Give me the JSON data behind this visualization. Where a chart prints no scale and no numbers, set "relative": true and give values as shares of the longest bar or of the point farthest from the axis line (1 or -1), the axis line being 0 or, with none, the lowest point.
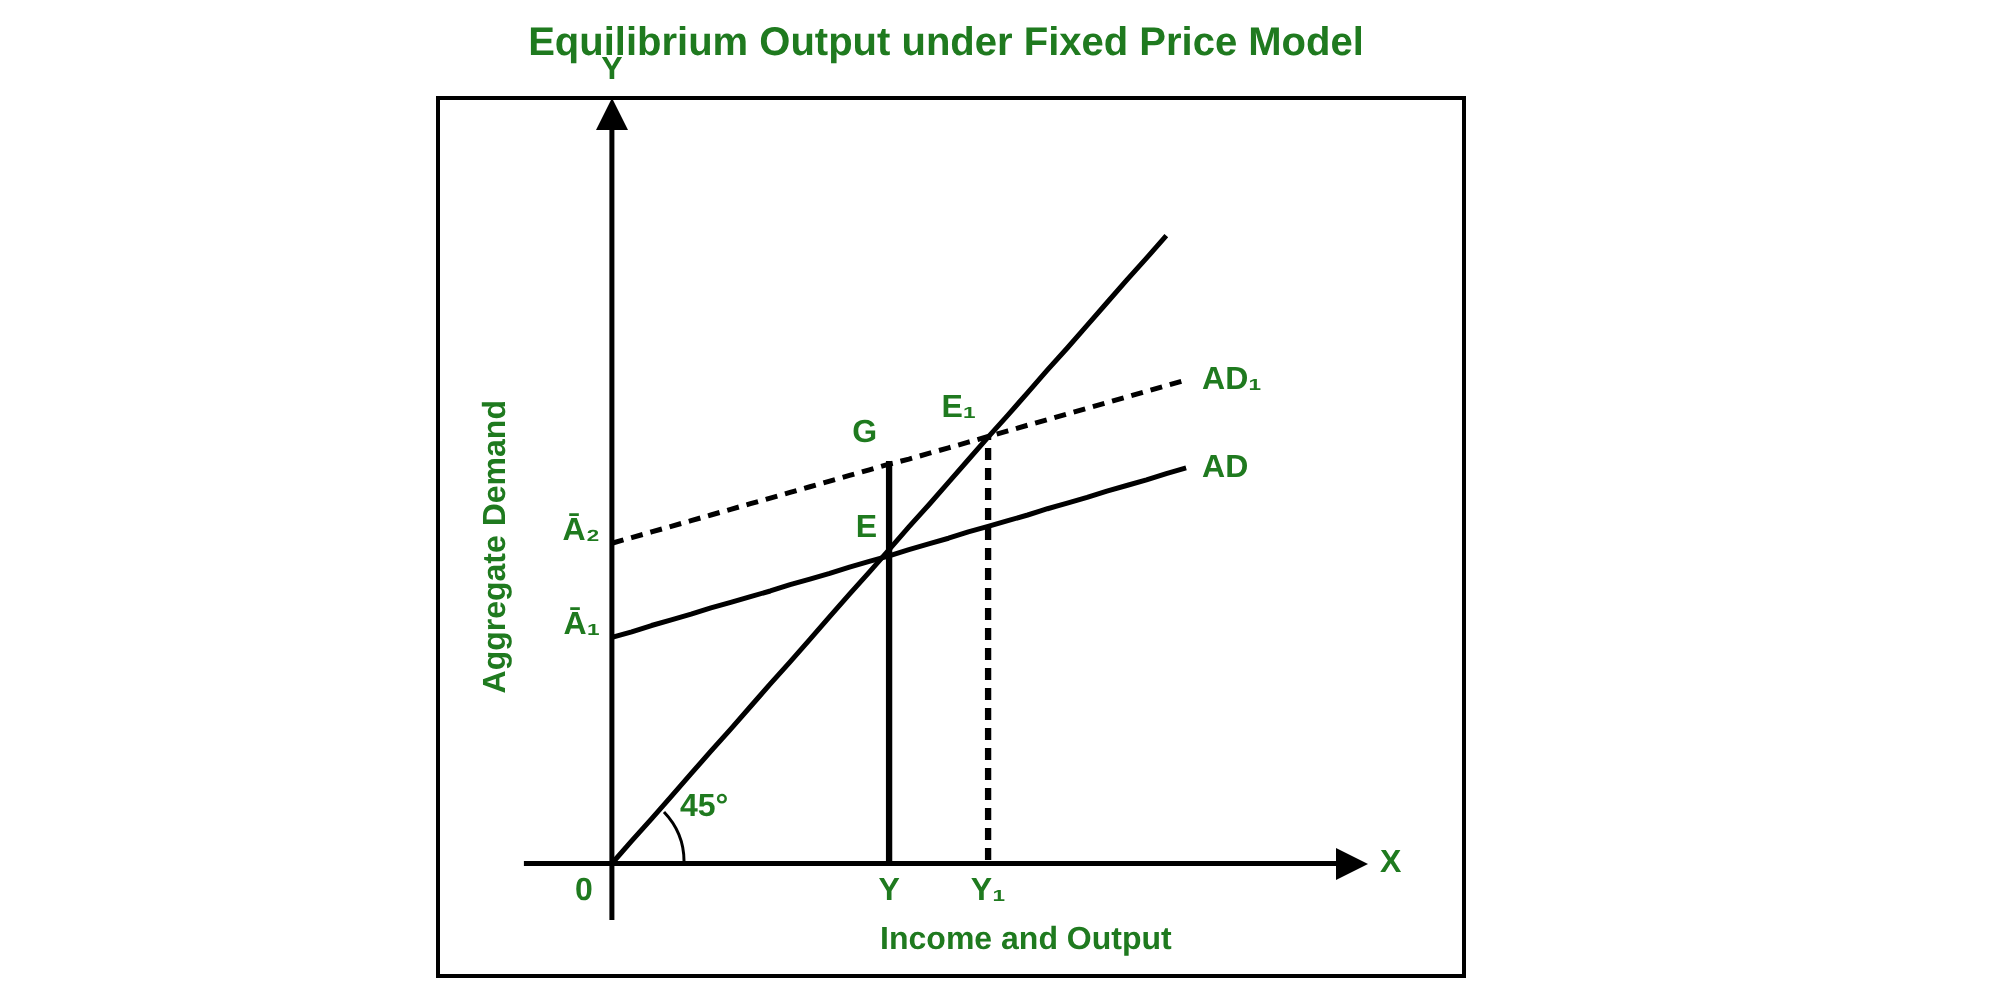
{
  "chart_data": {
    "type": "line",
    "title": "Equilibrium Output under Fixed Price Model",
    "xlabel": "Income and Output",
    "ylabel": "Aggregate Demand",
    "relative": true,
    "marker": "none",
    "legend": false,
    "categories": [
      null,
      null,
      null,
      null,
      null,
      null,
      null,
      null,
      null,
      null,
      null,
      null,
      null,
      null,
      "Y",
      null,
      null,
      null,
      null,
      "Y₁",
      null,
      null,
      null,
      null,
      null,
      null,
      null,
      null,
      null,
      null
    ],
    "series": [
      {
        "values": [
          0,
          0.036,
          0.071,
          0.107,
          0.143,
          0.179,
          0.214,
          0.25,
          0.286,
          0.321,
          0.357,
          0.393,
          0.429,
          0.464,
          0.5,
          0.536,
          0.571,
          0.607,
          0.643,
          0.679,
          0.714,
          0.75,
          0.786,
          0.821,
          0.857,
          0.893,
          0.929,
          0.964,
          1,
          null
        ],
        "color": "#000000"
      },
      {
        "name": "AD",
        "values": [
          0.36,
          0.369,
          0.379,
          0.388,
          0.397,
          0.407,
          0.416,
          0.425,
          0.434,
          0.444,
          0.453,
          0.462,
          0.472,
          0.481,
          0.49,
          0.5,
          0.509,
          0.518,
          0.528,
          0.537,
          0.546,
          0.555,
          0.565,
          0.574,
          0.583,
          0.593,
          0.602,
          0.611,
          0.621,
          0.63
        ],
        "color": "#000000"
      },
      {
        "name": "AD₁",
        "values": [
          0.51,
          0.519,
          0.528,
          0.537,
          0.546,
          0.555,
          0.564,
          0.573,
          0.582,
          0.591,
          0.6,
          0.609,
          0.618,
          0.627,
          0.636,
          0.644,
          0.653,
          0.662,
          0.671,
          0.68,
          0.689,
          0.698,
          0.707,
          0.716,
          0.725,
          0.734,
          0.743,
          0.752,
          0.761,
          0.77
        ],
        "color": "#000000",
        "line_style": "dashed"
      },
      {
        "type": "bar",
        "values": [
          null,
          null,
          null,
          null,
          null,
          null,
          null,
          null,
          null,
          null,
          null,
          null,
          null,
          null,
          0.64,
          null,
          null,
          null,
          null,
          null,
          null,
          null,
          null,
          null,
          null,
          null,
          null,
          null,
          null,
          null
        ],
        "color": "#000000"
      },
      {
        "type": "bar",
        "values": [
          null,
          null,
          null,
          null,
          null,
          null,
          null,
          null,
          null,
          null,
          null,
          null,
          null,
          null,
          null,
          null,
          null,
          null,
          null,
          0.68,
          null,
          null,
          null,
          null,
          null,
          null,
          null,
          null,
          null,
          null
        ],
        "color": "#000000",
        "line_style": "dashed"
      }
    ],
    "annotations": [
      {
        "text": "E",
        "x": "Y",
        "y": 0.49
      },
      {
        "text": "E₁",
        "x": "Y₁",
        "y": 0.68
      },
      {
        "text": "G",
        "x": "Y",
        "y": 0.64
      },
      "45°",
      "X",
      "Y",
      "0",
      "Ā₁",
      "Ā₂"
    ]
  }
}
